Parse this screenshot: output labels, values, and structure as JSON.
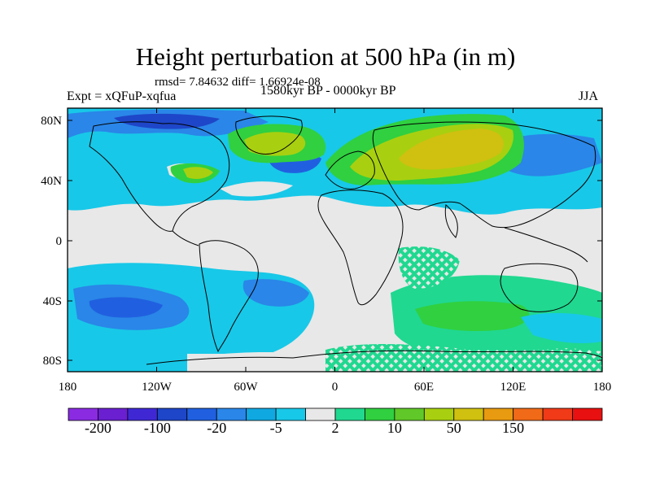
{
  "header": {
    "title": "Height perturbation at 500 hPa (in m)",
    "stats": "rmsd= 7.84632 diff= 1.66924e-08",
    "expt": "Expt = xQFuP-xqfua",
    "period": "1580kyr BP - 0000kyr BP",
    "season": "JJA"
  },
  "axes": {
    "lat_labels": [
      "80N",
      "40N",
      "0",
      "40S",
      "80S"
    ],
    "lon_labels": [
      "180",
      "120W",
      "60W",
      "0",
      "60E",
      "120E",
      "180"
    ]
  },
  "colorbar": {
    "colors": [
      "#8a2be2",
      "#6a1fd0",
      "#3f28d4",
      "#1e46c8",
      "#2060e0",
      "#2a86e8",
      "#10a8e0",
      "#18c8e8",
      "#e8e8e8",
      "#20d890",
      "#30d040",
      "#60c828",
      "#a8d010",
      "#d0c010",
      "#e89a10",
      "#f06a18",
      "#f03a18",
      "#e81010"
    ],
    "labels": [
      "-200",
      "-100",
      "-20",
      "-5",
      "2",
      "10",
      "50",
      "150"
    ]
  }
}
